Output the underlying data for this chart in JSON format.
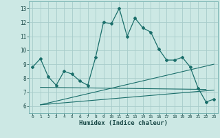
{
  "title": "",
  "xlabel": "Humidex (Indice chaleur)",
  "ylabel": "",
  "bg_color": "#cce8e4",
  "grid_color": "#a8ccca",
  "line_color": "#1a6e6a",
  "xlim": [
    -0.5,
    23.5
  ],
  "ylim": [
    5.5,
    13.5
  ],
  "yticks": [
    6,
    7,
    8,
    9,
    10,
    11,
    12,
    13
  ],
  "xticks": [
    0,
    1,
    2,
    3,
    4,
    5,
    6,
    7,
    8,
    9,
    10,
    11,
    12,
    13,
    14,
    15,
    16,
    17,
    18,
    19,
    20,
    21,
    22,
    23
  ],
  "main_x": [
    0,
    1,
    2,
    3,
    4,
    5,
    6,
    7,
    8,
    9,
    10,
    11,
    12,
    13,
    14,
    15,
    16,
    17,
    18,
    19,
    20,
    21,
    22,
    23
  ],
  "main_y": [
    8.8,
    9.4,
    8.1,
    7.5,
    8.5,
    8.3,
    7.8,
    7.5,
    9.5,
    12.0,
    11.9,
    13.0,
    11.0,
    12.3,
    11.6,
    11.3,
    10.1,
    9.3,
    9.3,
    9.5,
    8.8,
    7.3,
    6.3,
    6.5
  ],
  "line1_x": [
    1,
    23
  ],
  "line1_y": [
    6.1,
    7.15
  ],
  "line2_x": [
    1,
    23
  ],
  "line2_y": [
    6.1,
    9.0
  ],
  "line3_x": [
    1,
    22
  ],
  "line3_y": [
    7.35,
    7.2
  ]
}
